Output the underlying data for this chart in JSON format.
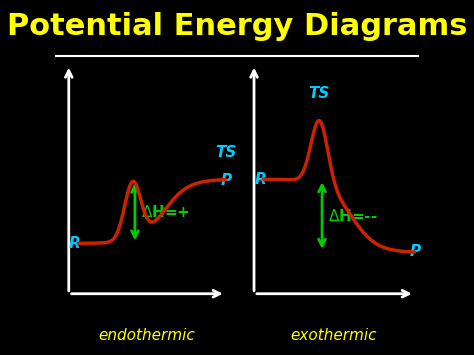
{
  "title": "Potential Energy Diagrams",
  "title_color": "#FFFF00",
  "title_fontsize": 22,
  "bg_color": "#000000",
  "line_color": "#CC2200",
  "axis_color": "#FFFFFF",
  "label_endo": "endothermic",
  "label_exo": "exothermic",
  "label_color": "#FFFF00",
  "ts_color": "#00CCFF",
  "r_color": "#00CCFF",
  "p_color": "#00CCFF",
  "dH_color": "#00CC00",
  "underline_color": "#FFFFFF"
}
